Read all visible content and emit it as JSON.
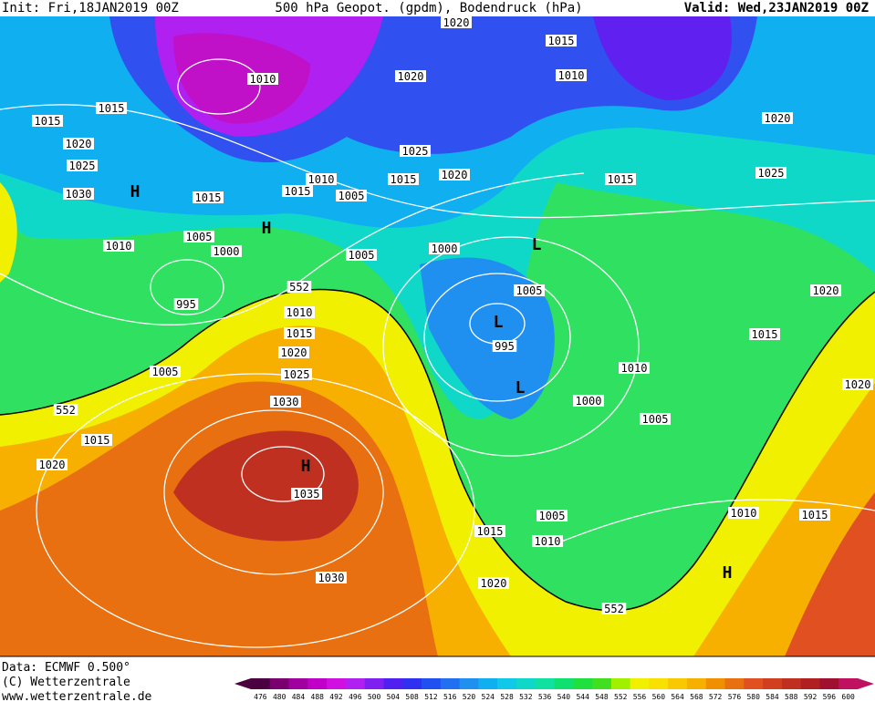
{
  "header": {
    "init": "Init: Fri,18JAN2019 00Z",
    "title": "500 hPa Geopot. (gpdm), Bodendruck (hPa)",
    "valid": "Valid: Wed,23JAN2019 00Z"
  },
  "map": {
    "labels": [
      "1010",
      "1015",
      "1015",
      "1020",
      "1025",
      "1030",
      "H",
      "1015",
      "1010",
      "1015",
      "1005",
      "1015",
      "1020",
      "1020",
      "1025",
      "1020",
      "1015",
      "1010",
      "1015",
      "1020",
      "1025",
      "1005",
      "1000",
      "1010",
      "995",
      "1005",
      "1000",
      "L",
      "1005",
      "L",
      "995",
      "552",
      "1010",
      "1015",
      "1020",
      "1025",
      "1030",
      "H",
      "1035",
      "1030",
      "1005",
      "552",
      "1015",
      "1020",
      "L",
      "1010",
      "1000",
      "1005",
      "1015",
      "1020",
      "1020",
      "1005",
      "1010",
      "1015",
      "1020",
      "552",
      "1010",
      "1015",
      "H",
      "H"
    ]
  },
  "footer": {
    "data": "Data: ECMWF   0.500°",
    "copyright": "(C) Wetterzentrale",
    "url": "www.wetterzentrale.de"
  },
  "colorbar": {
    "values": [
      476,
      480,
      484,
      488,
      492,
      496,
      500,
      504,
      508,
      512,
      516,
      520,
      524,
      528,
      532,
      536,
      540,
      544,
      548,
      552,
      556,
      560,
      564,
      568,
      572,
      576,
      580,
      584,
      588,
      592,
      596,
      600
    ],
    "colors": [
      "#4b0040",
      "#7a0070",
      "#a000a0",
      "#c000c8",
      "#d010e0",
      "#b020f0",
      "#8020f0",
      "#5020f0",
      "#3030f0",
      "#2050f0",
      "#2070f0",
      "#2090f0",
      "#10b0f0",
      "#10c8e8",
      "#10d8c8",
      "#10e0a0",
      "#10e070",
      "#20e040",
      "#40e020",
      "#a0f000",
      "#f0f000",
      "#f8e000",
      "#f8c800",
      "#f8b000",
      "#f09000",
      "#e87010",
      "#e05020",
      "#d04020",
      "#c03020",
      "#b02020",
      "#a01030",
      "#c01060"
    ]
  }
}
